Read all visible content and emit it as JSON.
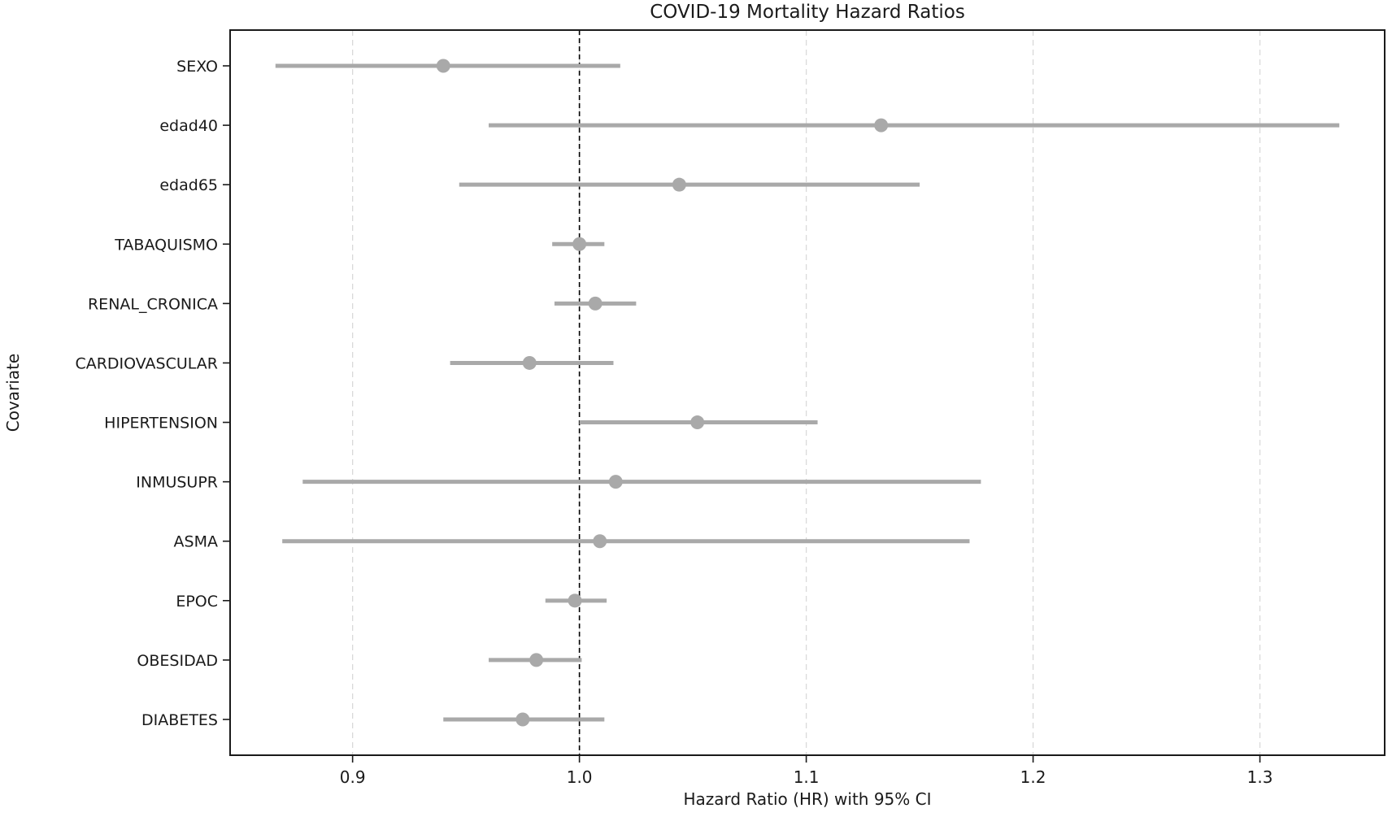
{
  "chart_data": {
    "type": "scatter",
    "variant": "forest-plot",
    "title": "COVID-19 Mortality Hazard Ratios",
    "xlabel": "Hazard Ratio (HR) with 95% CI",
    "ylabel": "Covariate",
    "xlim": [
      0.846,
      1.355
    ],
    "xticks": [
      0.9,
      1.0,
      1.1,
      1.2,
      1.3
    ],
    "xtick_labels": [
      "0.9",
      "1.0",
      "1.1",
      "1.2",
      "1.3"
    ],
    "grid": {
      "axis": "x",
      "style": "dashed",
      "color": "#d9d9d9"
    },
    "reference_line": {
      "x": 1.0,
      "style": "dashed",
      "color": "#000000"
    },
    "legend": "none",
    "categories": [
      "SEXO",
      "edad40",
      "edad65",
      "TABAQUISMO",
      "RENAL_CRONICA",
      "CARDIOVASCULAR",
      "HIPERTENSION",
      "INMUSUPR",
      "ASMA",
      "EPOC",
      "OBESIDAD",
      "DIABETES"
    ],
    "series": [
      {
        "name": "Hazard Ratio (point estimate)",
        "values": [
          0.94,
          1.133,
          1.044,
          1.0,
          1.007,
          0.978,
          1.052,
          1.016,
          1.009,
          0.998,
          0.981,
          0.975
        ]
      },
      {
        "name": "95% CI lower",
        "values": [
          0.866,
          0.96,
          0.947,
          0.988,
          0.989,
          0.943,
          1.0,
          0.878,
          0.869,
          0.985,
          0.96,
          0.94
        ]
      },
      {
        "name": "95% CI upper",
        "values": [
          1.018,
          1.335,
          1.15,
          1.011,
          1.025,
          1.015,
          1.105,
          1.177,
          1.172,
          1.012,
          1.001,
          1.011
        ]
      }
    ],
    "marker": {
      "shape": "circle",
      "color": "#a9a9a9"
    },
    "ci_line_color": "#a9a9a9",
    "spine_color": "#1a1a1a"
  }
}
